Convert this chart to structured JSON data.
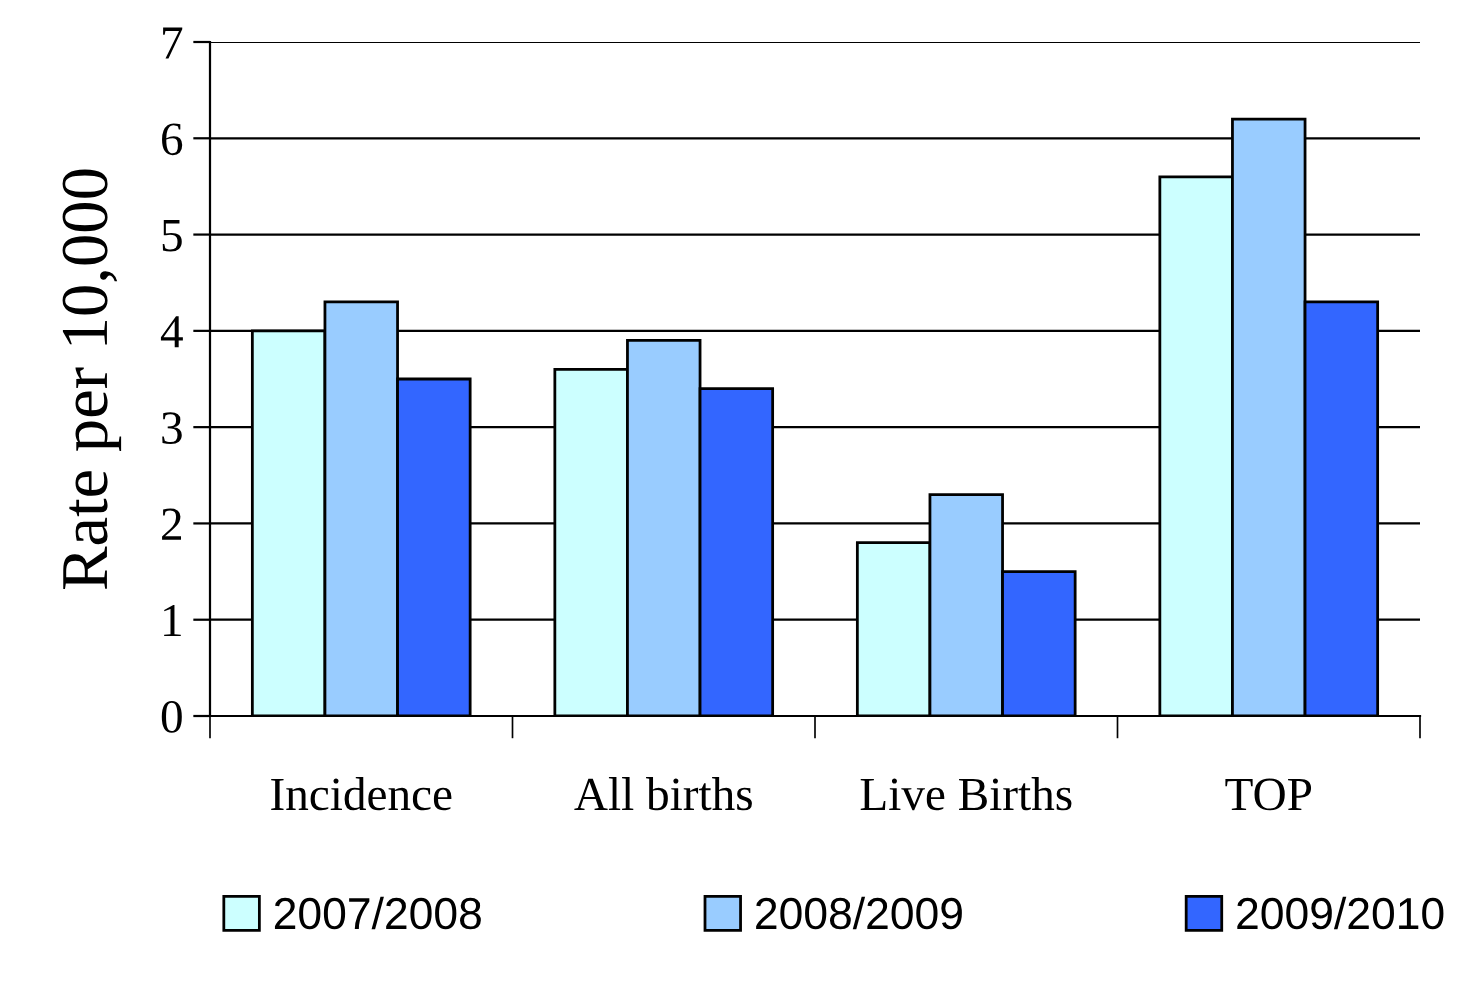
{
  "chart_data": {
    "type": "bar",
    "ylabel": "Rate per 10,000",
    "categories": [
      "Incidence",
      "All births",
      "Live Births",
      "TOP"
    ],
    "series": [
      {
        "name": "2007/2008",
        "color": "#ccffff",
        "values": [
          4.0,
          3.6,
          1.8,
          5.6
        ]
      },
      {
        "name": "2008/2009",
        "color": "#99ccff",
        "values": [
          4.3,
          3.9,
          2.3,
          6.2
        ]
      },
      {
        "name": "2009/2010",
        "color": "#3366ff",
        "values": [
          3.5,
          3.4,
          1.5,
          4.3
        ]
      }
    ],
    "ylim": [
      0,
      7
    ],
    "yticks": [
      0,
      1,
      2,
      3,
      4,
      5,
      6,
      7
    ],
    "grid": "y",
    "legend": "bottom"
  }
}
